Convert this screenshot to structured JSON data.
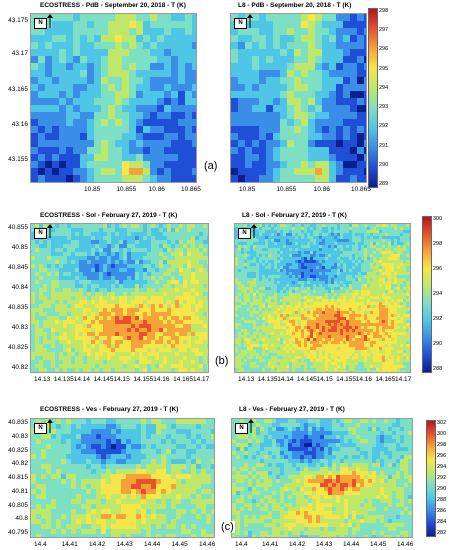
{
  "rows": [
    {
      "id": "a",
      "label": "(a)",
      "left_title": "ECOSTRESS - PdB - September 20, 2018 - T (K)",
      "right_title": "L8 - PdB - September 20, 2018 - T (K)",
      "y_ticks": [
        "43.175",
        "43.17",
        "43.165",
        "43.16",
        "43.155"
      ],
      "x_ticks": [
        "10.85",
        "10.855",
        "10.86",
        "10.865"
      ],
      "colorbar_ticks": [
        "298",
        "297",
        "296",
        "295",
        "294",
        "293",
        "292",
        "291",
        "290",
        "289"
      ]
    },
    {
      "id": "b",
      "label": "(b)",
      "left_title": "ECOSTRESS - Sol - February 27, 2019 - T (K)",
      "right_title": "L8 - Sol - February 27, 2019 - T (K)",
      "y_ticks": [
        "40.855",
        "40.85",
        "40.845",
        "40.84",
        "40.835",
        "40.83",
        "40.825",
        "40.82"
      ],
      "x_ticks": [
        "14.13",
        "14.135",
        "14.14",
        "14.145",
        "14.15",
        "14.155",
        "14.16",
        "14.165",
        "14.17"
      ],
      "colorbar_ticks": [
        "300",
        "298",
        "296",
        "294",
        "292",
        "290",
        "288"
      ]
    },
    {
      "id": "c",
      "label": "(c)",
      "left_title": "ECOSTRESS - Ves - February 27, 2019 - T (K)",
      "right_title": "L8 - Ves - February 27, 2019 - T (K)",
      "y_ticks": [
        "40.835",
        "40.83",
        "40.825",
        "40.82",
        "40.815",
        "40.81",
        "40.805",
        "40.8",
        "40.795"
      ],
      "x_ticks": [
        "14.4",
        "14.41",
        "14.42",
        "14.43",
        "14.44",
        "14.45",
        "14.46"
      ],
      "colorbar_ticks": [
        "302",
        "300",
        "298",
        "296",
        "294",
        "292",
        "290",
        "288",
        "286",
        "284",
        "282"
      ]
    }
  ],
  "north_label": "N",
  "colormap": [
    "#0a1f8f",
    "#1f4fd6",
    "#3a8ee8",
    "#4fc6e6",
    "#7de0c4",
    "#bfe86a",
    "#f5e64a",
    "#f6a23a",
    "#e8512a",
    "#b8141a"
  ]
}
